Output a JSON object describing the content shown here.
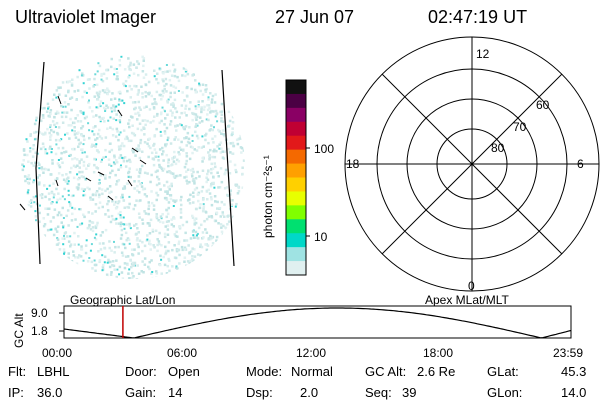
{
  "header": {
    "instrument": "Ultraviolet Imager",
    "date": "27 Jun 07",
    "time": "02:47:19 UT"
  },
  "colorbar": {
    "unit_label": "photon cm⁻²s⁻¹",
    "ticks": [
      "100",
      "10"
    ],
    "colors": [
      "#111111",
      "#4b0044",
      "#8a0064",
      "#c00033",
      "#e2191a",
      "#f46900",
      "#ffa000",
      "#ffd000",
      "#e8ff00",
      "#80ff00",
      "#00e070",
      "#00d8c8",
      "#9fe3e3",
      "#e0f0f0"
    ]
  },
  "polar_plot": {
    "mlt_labels": {
      "top": "12",
      "left": "18",
      "right": "6",
      "bottom": "0"
    },
    "lat_labels": [
      "60",
      "70",
      "80"
    ]
  },
  "timeline": {
    "left_title": "Geographic Lat/Lon",
    "right_title": "Apex MLat/MLT",
    "y_axis_label": "GC Alt",
    "y_ticks": [
      "9.0",
      "1.8"
    ],
    "x_ticks": [
      "00:00",
      "06:00",
      "12:00",
      "18:00",
      "23:59"
    ],
    "current_time_hours": 2.788,
    "marker_color": "#c00000"
  },
  "footer": {
    "flt": {
      "label": "Flt:",
      "value": "LBHL"
    },
    "ip": {
      "label": "IP:",
      "value": "36.0"
    },
    "door": {
      "label": "Door:",
      "value": "Open"
    },
    "gain": {
      "label": "Gain:",
      "value": "14"
    },
    "mode": {
      "label": "Mode:",
      "value": "Normal"
    },
    "dsp": {
      "label": "Dsp:",
      "value": "2.0"
    },
    "gc_alt": {
      "label": "GC Alt:",
      "value": "2.6 Re"
    },
    "seq": {
      "label": "Seq:",
      "value": "39"
    },
    "glat": {
      "label": "GLat:",
      "value": "45.3"
    },
    "glon": {
      "label": "GLon:",
      "value": "14.0"
    }
  }
}
